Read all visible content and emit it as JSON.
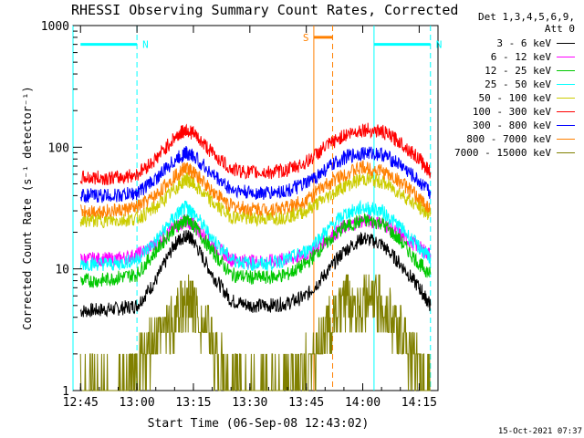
{
  "title": "RHESSI Observing Summary Count Rates, Corrected",
  "detector_info": {
    "line1": "Det 1,3,4,5,6,9,",
    "line2": "Att 0"
  },
  "footer_timestamp": "15-Oct-2021 07:37",
  "chart_data": {
    "type": "line",
    "title": "RHESSI Observing Summary Count Rates, Corrected",
    "xlabel": "Start Time (06-Sep-08 12:43:02)",
    "ylabel": "Corrected Count Rate (s⁻¹ detector⁻¹)",
    "yscale": "log",
    "ylim": [
      1,
      1000
    ],
    "xlim_minutes": [
      "12:43",
      "14:20"
    ],
    "x_tick_labels": [
      "12:45",
      "13:00",
      "13:15",
      "13:30",
      "13:45",
      "14:00",
      "14:15"
    ],
    "y_tick_labels": [
      "1",
      "10",
      "100",
      "1000"
    ],
    "legend_position": "right",
    "x": [
      "12:45",
      "12:50",
      "12:55",
      "13:00",
      "13:05",
      "13:10",
      "13:13",
      "13:15",
      "13:20",
      "13:25",
      "13:30",
      "13:35",
      "13:40",
      "13:45",
      "13:50",
      "13:55",
      "14:00",
      "14:05",
      "14:10",
      "14:15",
      "14:18"
    ],
    "series": [
      {
        "name": "3 - 6 keV",
        "color": "#000000",
        "values": [
          4.5,
          4.6,
          4.7,
          5,
          8,
          16,
          19,
          17,
          9,
          5.5,
          5,
          5,
          5.2,
          6,
          9,
          14,
          18,
          16,
          11,
          7,
          5
        ]
      },
      {
        "name": "6 - 12 keV",
        "color": "#ff00ff",
        "values": [
          12,
          12,
          12,
          13,
          16,
          22,
          25,
          23,
          16,
          12,
          11.5,
          11.5,
          12,
          13,
          17,
          22,
          25,
          24,
          19,
          15,
          13
        ]
      },
      {
        "name": "12 - 25 keV",
        "color": "#00c800",
        "values": [
          8,
          8,
          8.5,
          9,
          14,
          22,
          25,
          23,
          14,
          9,
          8.5,
          8.5,
          9,
          11,
          16,
          22,
          25,
          24,
          17,
          11,
          9
        ]
      },
      {
        "name": "25 - 50 keV",
        "color": "#00ffff",
        "values": [
          11,
          11,
          11,
          12,
          17,
          27,
          32,
          29,
          18,
          12,
          11,
          11,
          12,
          14,
          20,
          28,
          32,
          30,
          22,
          15,
          12
        ]
      },
      {
        "name": "50 - 100 keV",
        "color": "#cccc00",
        "values": [
          25,
          25,
          25,
          26,
          32,
          45,
          55,
          50,
          35,
          27,
          26,
          26,
          27,
          30,
          38,
          48,
          55,
          52,
          42,
          32,
          28
        ]
      },
      {
        "name": "100 - 300 keV",
        "color": "#ff0000",
        "values": [
          56,
          56,
          56,
          60,
          80,
          120,
          140,
          130,
          90,
          66,
          62,
          62,
          65,
          75,
          100,
          125,
          140,
          135,
          110,
          80,
          62
        ]
      },
      {
        "name": "300 - 800 keV",
        "color": "#0000ff",
        "values": [
          40,
          40,
          40,
          42,
          55,
          78,
          90,
          85,
          60,
          45,
          42,
          42,
          44,
          50,
          65,
          82,
          90,
          88,
          72,
          52,
          42
        ]
      },
      {
        "name": "800 - 7000 keV",
        "color": "#ff8000",
        "values": [
          30,
          30,
          30,
          32,
          40,
          58,
          68,
          62,
          44,
          33,
          31,
          31,
          32,
          37,
          48,
          60,
          68,
          64,
          52,
          38,
          31
        ]
      },
      {
        "name": "7000 - 15000 keV",
        "color": "#808000",
        "values": [
          1,
          1,
          1,
          1.5,
          2.5,
          4,
          5.5,
          5,
          2.5,
          1,
          1,
          1,
          1,
          1.5,
          3,
          5,
          5.5,
          5,
          3,
          1.5,
          1
        ]
      }
    ],
    "annotations": [
      {
        "label": "N",
        "color": "#00ffff",
        "start": "12:45",
        "end": "13:00",
        "level": 700
      },
      {
        "label": "N",
        "color": "#00ffff",
        "start": "14:03",
        "end": "14:18",
        "level": 700
      },
      {
        "label": "S",
        "color": "#ff8000",
        "start": "13:47",
        "end": "13:52",
        "level": 800
      }
    ],
    "vertical_markers": [
      {
        "time": "12:43",
        "color": "#00ffff",
        "style": "solid"
      },
      {
        "time": "13:00",
        "color": "#00ffff",
        "style": "dashed"
      },
      {
        "time": "13:47",
        "color": "#ff8000",
        "style": "solid"
      },
      {
        "time": "13:52",
        "color": "#ff8000",
        "style": "dashed"
      },
      {
        "time": "14:03",
        "color": "#00ffff",
        "style": "solid"
      },
      {
        "time": "14:18",
        "color": "#00ffff",
        "style": "dashed"
      }
    ]
  }
}
